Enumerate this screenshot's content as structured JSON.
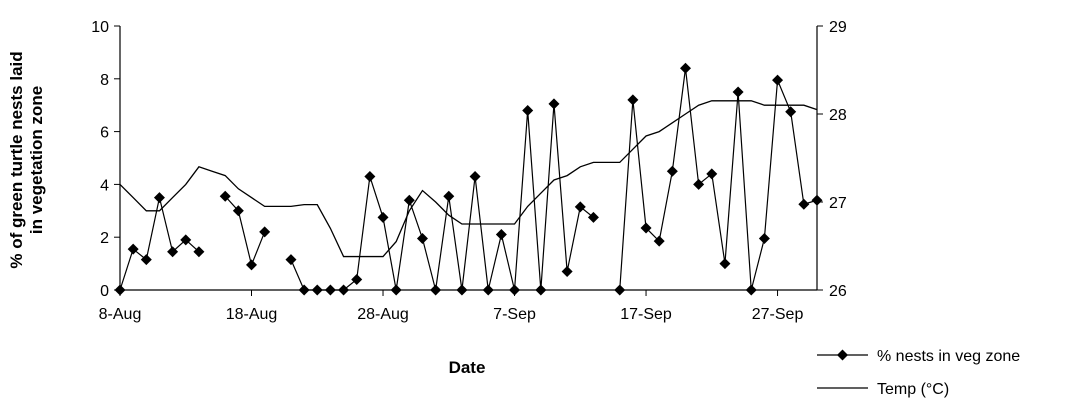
{
  "chart_data": {
    "type": "line",
    "xlabel": "Date",
    "ylabel_line1": "% of green turtle nests laid",
    "ylabel_line2": "in vegetation zone",
    "x_ticks": [
      "8-Aug",
      "18-Aug",
      "28-Aug",
      "7-Sep",
      "17-Sep",
      "27-Sep"
    ],
    "x_start_date": "8-Aug",
    "x_range_days": [
      0,
      53
    ],
    "ylim": [
      0,
      10
    ],
    "y_ticks": [
      0,
      2,
      4,
      6,
      8,
      10
    ],
    "y2lim": [
      26,
      29
    ],
    "y2_ticks": [
      26,
      27,
      28,
      29
    ],
    "legend_position": "bottom-right",
    "grid": false,
    "series": [
      {
        "name": "% nests in veg zone",
        "axis": "left",
        "marker": "diamond",
        "color": "#000000",
        "segments": [
          [
            [
              0,
              0
            ],
            [
              1,
              1.55
            ],
            [
              2,
              1.15
            ],
            [
              3,
              3.5
            ],
            [
              4,
              1.45
            ],
            [
              5,
              1.9
            ],
            [
              6,
              1.45
            ]
          ],
          [
            [
              8,
              3.55
            ],
            [
              9,
              3.0
            ],
            [
              10,
              0.95
            ],
            [
              11,
              2.2
            ]
          ],
          [
            [
              13,
              1.15
            ],
            [
              14,
              0
            ],
            [
              15,
              0
            ],
            [
              16,
              0
            ],
            [
              17,
              0
            ],
            [
              18,
              0.4
            ],
            [
              19,
              4.3
            ],
            [
              20,
              2.75
            ],
            [
              21,
              0
            ],
            [
              22,
              3.4
            ],
            [
              23,
              1.95
            ],
            [
              24,
              0
            ],
            [
              25,
              3.55
            ],
            [
              26,
              0
            ],
            [
              27,
              4.3
            ],
            [
              28,
              0
            ],
            [
              29,
              2.1
            ],
            [
              30,
              0
            ],
            [
              31,
              6.8
            ],
            [
              32,
              0
            ],
            [
              33,
              7.05
            ],
            [
              34,
              0.7
            ],
            [
              35,
              3.15
            ],
            [
              36,
              2.75
            ]
          ],
          [
            [
              38,
              0
            ],
            [
              39,
              7.2
            ],
            [
              40,
              2.35
            ],
            [
              41,
              1.85
            ],
            [
              42,
              4.5
            ],
            [
              43,
              8.4
            ],
            [
              44,
              4.0
            ],
            [
              45,
              4.4
            ],
            [
              46,
              1.0
            ],
            [
              47,
              7.5
            ],
            [
              48,
              0
            ],
            [
              49,
              1.95
            ],
            [
              50,
              7.95
            ],
            [
              51,
              6.75
            ],
            [
              52,
              3.25
            ],
            [
              53,
              3.4
            ]
          ]
        ]
      },
      {
        "name": "Temp (°C)",
        "axis": "right",
        "marker": "none",
        "color": "#000000",
        "points": [
          [
            0,
            27.2
          ],
          [
            1,
            27.05
          ],
          [
            2,
            26.9
          ],
          [
            3,
            26.9
          ],
          [
            4,
            27.05
          ],
          [
            5,
            27.2
          ],
          [
            6,
            27.4
          ],
          [
            7,
            27.35
          ],
          [
            8,
            27.3
          ],
          [
            9,
            27.15
          ],
          [
            10,
            27.05
          ],
          [
            11,
            26.95
          ],
          [
            12,
            26.95
          ],
          [
            13,
            26.95
          ],
          [
            14,
            26.97
          ],
          [
            15,
            26.97
          ],
          [
            16,
            26.7
          ],
          [
            17,
            26.38
          ],
          [
            18,
            26.38
          ],
          [
            19,
            26.38
          ],
          [
            20,
            26.38
          ],
          [
            21,
            26.55
          ],
          [
            22,
            26.9
          ],
          [
            23,
            27.13
          ],
          [
            24,
            27.0
          ],
          [
            25,
            26.85
          ],
          [
            26,
            26.75
          ],
          [
            27,
            26.75
          ],
          [
            28,
            26.75
          ],
          [
            29,
            26.75
          ],
          [
            30,
            26.75
          ],
          [
            31,
            26.95
          ],
          [
            32,
            27.1
          ],
          [
            33,
            27.25
          ],
          [
            34,
            27.3
          ],
          [
            35,
            27.4
          ],
          [
            36,
            27.45
          ],
          [
            37,
            27.45
          ],
          [
            38,
            27.45
          ],
          [
            39,
            27.6
          ],
          [
            40,
            27.75
          ],
          [
            41,
            27.8
          ],
          [
            42,
            27.9
          ],
          [
            43,
            28.0
          ],
          [
            44,
            28.1
          ],
          [
            45,
            28.15
          ],
          [
            46,
            28.15
          ],
          [
            47,
            28.15
          ],
          [
            48,
            28.15
          ],
          [
            49,
            28.1
          ],
          [
            50,
            28.1
          ],
          [
            51,
            28.1
          ],
          [
            52,
            28.1
          ],
          [
            53,
            28.05
          ]
        ]
      }
    ]
  }
}
